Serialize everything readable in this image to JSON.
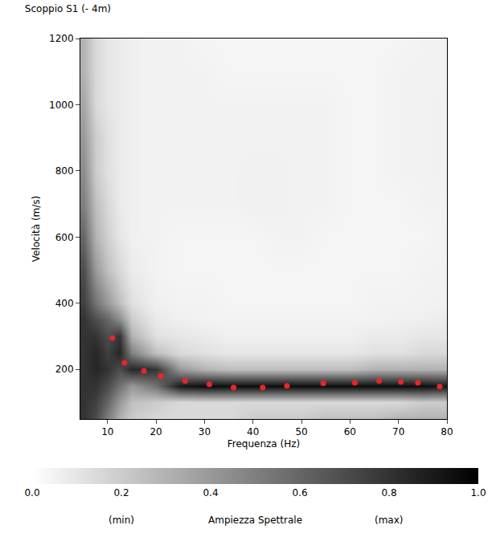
{
  "chart_data": {
    "type": "heatmap",
    "title": "Scoppio S1 (- 4m)",
    "x_label": "Frequenza (Hz)",
    "y_label": "Velocità (m/s)",
    "xlim": [
      4.4,
      80
    ],
    "xticks": [
      10,
      20,
      30,
      40,
      50,
      60,
      70,
      80
    ],
    "ylim": [
      50,
      1200
    ],
    "yticks": [
      200,
      400,
      600,
      800,
      1000,
      1200
    ],
    "grid": false,
    "heatmap": {
      "x": [
        5,
        7.5,
        10,
        12.5,
        15,
        20,
        25,
        30,
        35,
        40,
        45,
        50,
        55,
        60,
        65,
        70,
        75,
        80
      ],
      "y": [
        50,
        100,
        150,
        200,
        250,
        300,
        350,
        400,
        500,
        600,
        700,
        800,
        900,
        1000,
        1100,
        1200
      ],
      "z": [
        [
          0.8,
          0.7,
          0.5,
          0.3,
          0.2,
          0.15,
          0.15,
          0.15,
          0.15,
          0.2,
          0.2,
          0.2,
          0.25,
          0.25,
          0.25,
          0.3,
          0.3,
          0.3
        ],
        [
          0.8,
          0.75,
          0.6,
          0.4,
          0.25,
          0.2,
          0.15,
          0.15,
          0.15,
          0.15,
          0.15,
          0.15,
          0.15,
          0.15,
          0.15,
          0.15,
          0.2,
          0.2
        ],
        [
          0.8,
          0.8,
          0.7,
          0.55,
          0.4,
          0.55,
          0.9,
          0.95,
          0.95,
          0.95,
          0.95,
          0.95,
          0.95,
          0.95,
          0.95,
          0.95,
          0.95,
          0.9
        ],
        [
          0.8,
          0.85,
          0.8,
          0.7,
          0.85,
          0.8,
          0.4,
          0.3,
          0.25,
          0.25,
          0.25,
          0.25,
          0.25,
          0.25,
          0.3,
          0.3,
          0.3,
          0.3
        ],
        [
          0.8,
          0.85,
          0.75,
          0.85,
          0.5,
          0.25,
          0.15,
          0.12,
          0.1,
          0.1,
          0.1,
          0.1,
          0.1,
          0.1,
          0.12,
          0.12,
          0.15,
          0.15
        ],
        [
          0.8,
          0.8,
          0.7,
          0.8,
          0.3,
          0.12,
          0.1,
          0.08,
          0.06,
          0.06,
          0.06,
          0.06,
          0.06,
          0.06,
          0.08,
          0.08,
          0.1,
          0.1
        ],
        [
          0.8,
          0.7,
          0.6,
          0.45,
          0.2,
          0.08,
          0.06,
          0.05,
          0.05,
          0.05,
          0.05,
          0.05,
          0.05,
          0.05,
          0.05,
          0.06,
          0.06,
          0.08
        ],
        [
          0.75,
          0.55,
          0.4,
          0.25,
          0.12,
          0.06,
          0.05,
          0.05,
          0.04,
          0.04,
          0.04,
          0.04,
          0.04,
          0.04,
          0.05,
          0.05,
          0.05,
          0.06
        ],
        [
          0.7,
          0.4,
          0.25,
          0.15,
          0.08,
          0.05,
          0.04,
          0.04,
          0.04,
          0.04,
          0.04,
          0.04,
          0.04,
          0.04,
          0.04,
          0.04,
          0.05,
          0.05
        ],
        [
          0.6,
          0.3,
          0.18,
          0.1,
          0.06,
          0.05,
          0.04,
          0.04,
          0.04,
          0.04,
          0.05,
          0.05,
          0.04,
          0.04,
          0.04,
          0.04,
          0.04,
          0.05
        ],
        [
          0.5,
          0.25,
          0.15,
          0.08,
          0.06,
          0.05,
          0.05,
          0.05,
          0.05,
          0.06,
          0.06,
          0.05,
          0.05,
          0.04,
          0.04,
          0.04,
          0.05,
          0.05
        ],
        [
          0.45,
          0.2,
          0.12,
          0.08,
          0.06,
          0.05,
          0.05,
          0.05,
          0.05,
          0.06,
          0.06,
          0.05,
          0.05,
          0.04,
          0.04,
          0.05,
          0.05,
          0.06
        ],
        [
          0.4,
          0.2,
          0.12,
          0.08,
          0.06,
          0.05,
          0.05,
          0.05,
          0.05,
          0.05,
          0.05,
          0.05,
          0.05,
          0.04,
          0.04,
          0.05,
          0.05,
          0.06
        ],
        [
          0.35,
          0.15,
          0.1,
          0.08,
          0.06,
          0.05,
          0.05,
          0.05,
          0.05,
          0.05,
          0.05,
          0.05,
          0.05,
          0.04,
          0.04,
          0.05,
          0.05,
          0.06
        ],
        [
          0.3,
          0.15,
          0.1,
          0.08,
          0.06,
          0.05,
          0.05,
          0.05,
          0.04,
          0.04,
          0.04,
          0.04,
          0.04,
          0.04,
          0.04,
          0.05,
          0.05,
          0.05
        ],
        [
          0.3,
          0.15,
          0.1,
          0.08,
          0.06,
          0.05,
          0.05,
          0.04,
          0.04,
          0.04,
          0.04,
          0.04,
          0.04,
          0.04,
          0.04,
          0.04,
          0.05,
          0.05
        ]
      ]
    },
    "colorbar": {
      "range": [
        0,
        1
      ],
      "ticks": [
        {
          "value": 0,
          "label": "0.0"
        },
        0.2,
        0.4,
        0.6,
        0.8,
        {
          "value": 1,
          "label": "1.0"
        }
      ],
      "title": "Ampiezza Spettrale",
      "annotations": [
        {
          "value": 0.2,
          "label": "(min)"
        },
        {
          "value": 0.8,
          "label": "(max)"
        }
      ],
      "colors": [
        "#ffffff",
        "#000000"
      ]
    },
    "series": [
      {
        "type": "scatter",
        "color": "#e8262a",
        "marker": "circle",
        "x": [
          11,
          13.5,
          17.5,
          21,
          26,
          31,
          36,
          42,
          47,
          54.5,
          61,
          66,
          70.5,
          74,
          78.5
        ],
        "values": [
          295,
          220,
          195,
          180,
          165,
          155,
          145,
          145,
          150,
          158,
          160,
          165,
          162,
          160,
          148
        ]
      }
    ]
  }
}
